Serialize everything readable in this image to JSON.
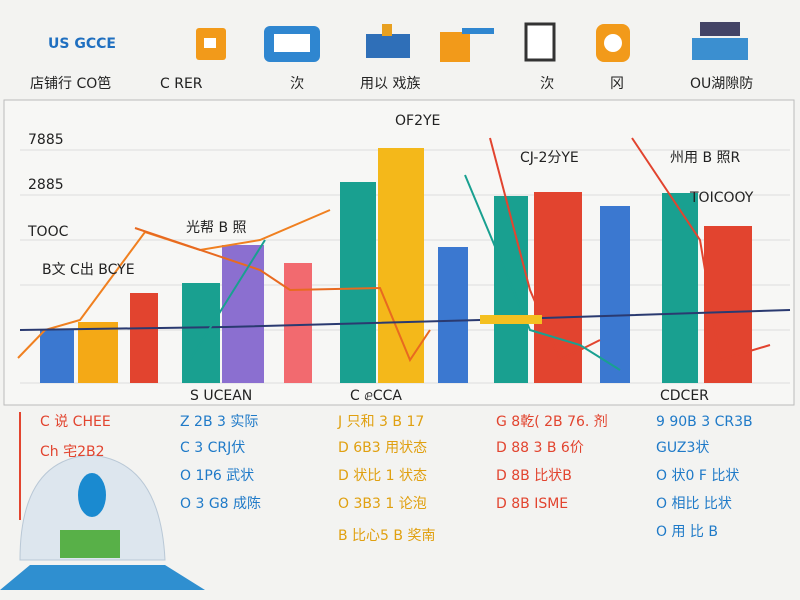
{
  "header": {
    "brand": "US GCCE",
    "tabs": [
      "店铺行 CO笆",
      "C RER",
      "㳄",
      "用以 戏族",
      "㳄",
      "冈",
      "OU湖隙防"
    ]
  },
  "panel": {
    "title": "OF2YE",
    "left_labels": [
      "7885",
      "2885",
      "TOOC"
    ],
    "notes": [
      "光帮 B 照",
      "B文 C出 BCYE",
      "CJ-2分YE",
      "州用 B 照R",
      "TOICOOY"
    ],
    "group_labels": [
      "S UCEAN",
      "C ⅇCCA",
      "CDCER"
    ]
  },
  "legend": [
    {
      "color": "#e2442f",
      "lines": [
        "C 说 CHEE",
        "Ch 宅2B2"
      ]
    },
    {
      "color": "#1f7ac8",
      "lines": [
        "Z 2B 3 实际",
        "C 3 CRJ伏",
        "O 1P6 武状",
        "O 3 G8 成陈"
      ]
    },
    {
      "color": "#e0a010",
      "lines": [
        "J 只和 3 B 17",
        "D 6B3 用状态",
        "D 状比 1 状态",
        "O 3B3 1 论泡",
        "B 比心5 B 奖南"
      ]
    },
    {
      "color": "#e2442f",
      "lines": [
        "G 8乾( 2B 76. 剂",
        "D 88 3 B 6价",
        "D 8B 比状B",
        "D 8B ⅠSME"
      ]
    },
    {
      "color": "#1f7ac8",
      "lines": [
        "9 90B 3 CR3B",
        "GUZ3状",
        "O 状0 F 比状",
        "O 相比 比状",
        "O 用 比 B"
      ]
    }
  ]
}
